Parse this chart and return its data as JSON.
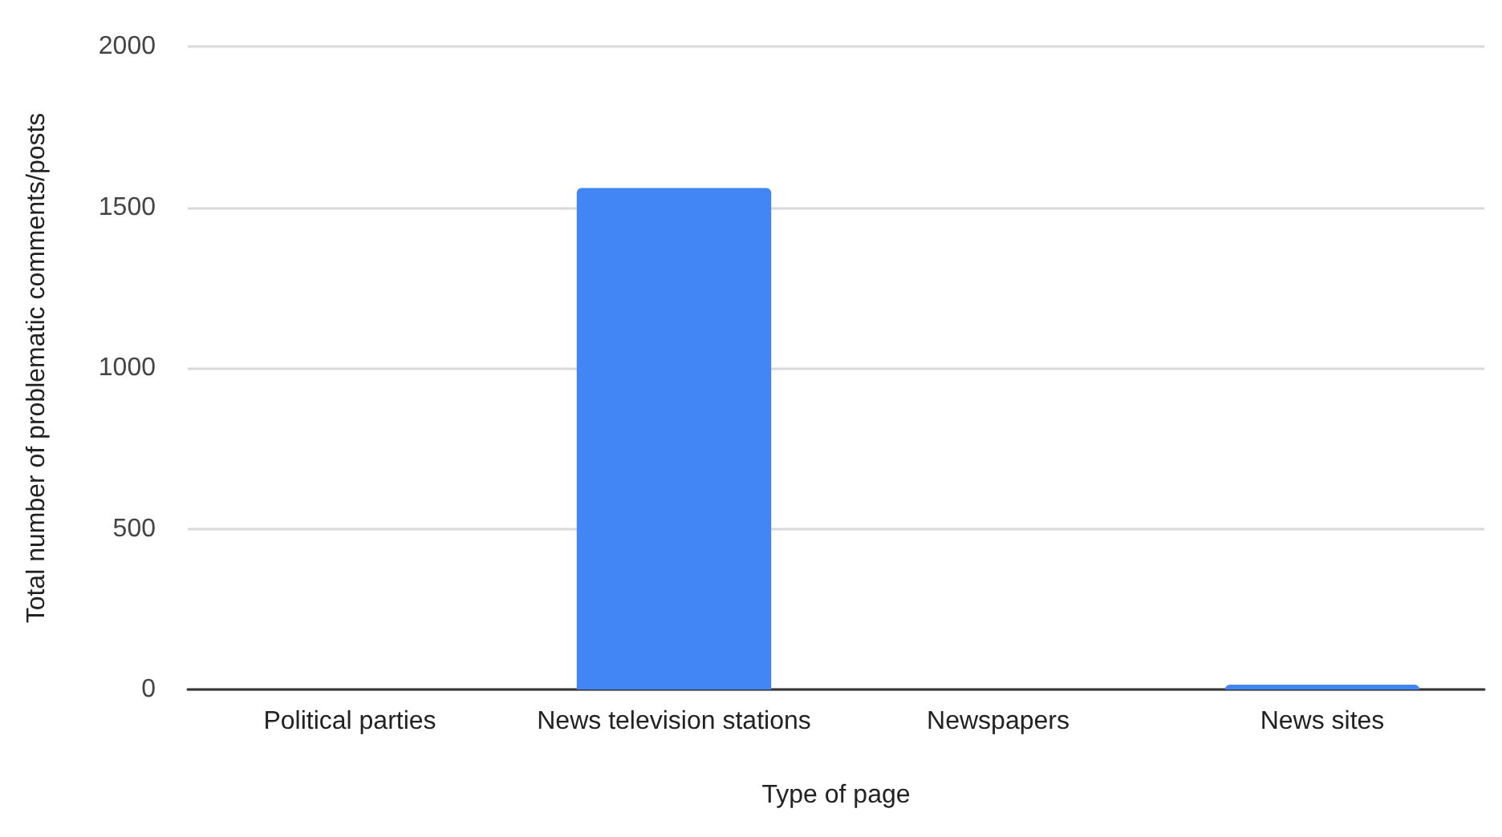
{
  "chart_data": {
    "type": "bar",
    "xlabel": "Type of page",
    "ylabel": "Total number of problematic comments/posts",
    "categories": [
      "Political parties",
      "News television stations",
      "Newspapers",
      "News sites"
    ],
    "values": [
      0,
      1560,
      0,
      15
    ],
    "color": "#4285f4",
    "ylim": [
      0,
      2000
    ],
    "yticks": [
      0,
      500,
      1000,
      1500,
      2000
    ],
    "grid": "y"
  }
}
